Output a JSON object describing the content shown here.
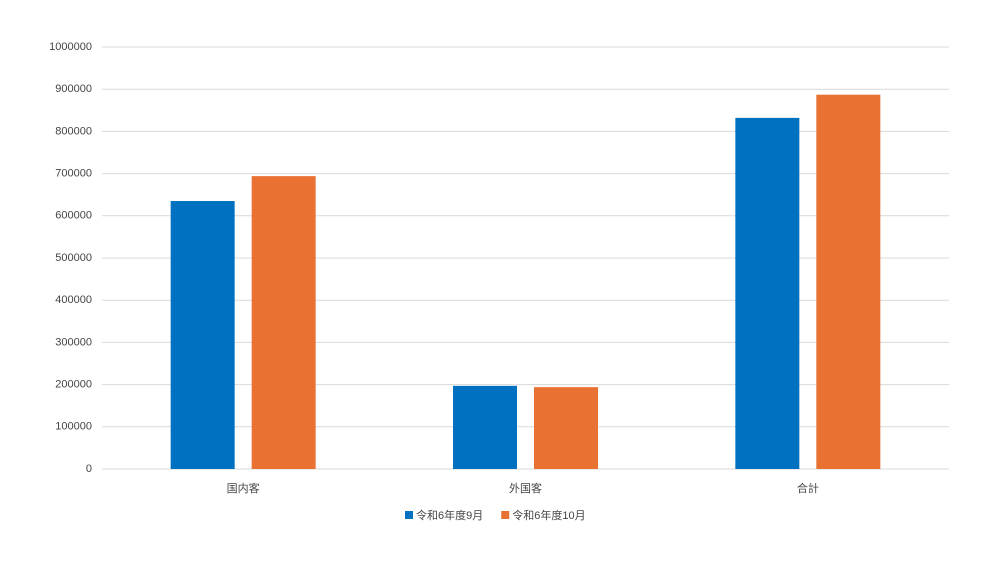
{
  "chart_data": {
    "type": "bar",
    "categories": [
      "国内客",
      "外国客",
      "合計"
    ],
    "series": [
      {
        "name": "令和6年度9月",
        "color": "#0070c0",
        "values": [
          635000,
          197000,
          832000
        ]
      },
      {
        "name": "令和6年度10月",
        "color": "#e97132",
        "values": [
          694000,
          194000,
          887000
        ]
      }
    ],
    "ylim": [
      0,
      1000000
    ],
    "yticks": [
      0,
      100000,
      200000,
      300000,
      400000,
      500000,
      600000,
      700000,
      800000,
      900000,
      1000000
    ],
    "grid": true,
    "legend": "bottom"
  }
}
